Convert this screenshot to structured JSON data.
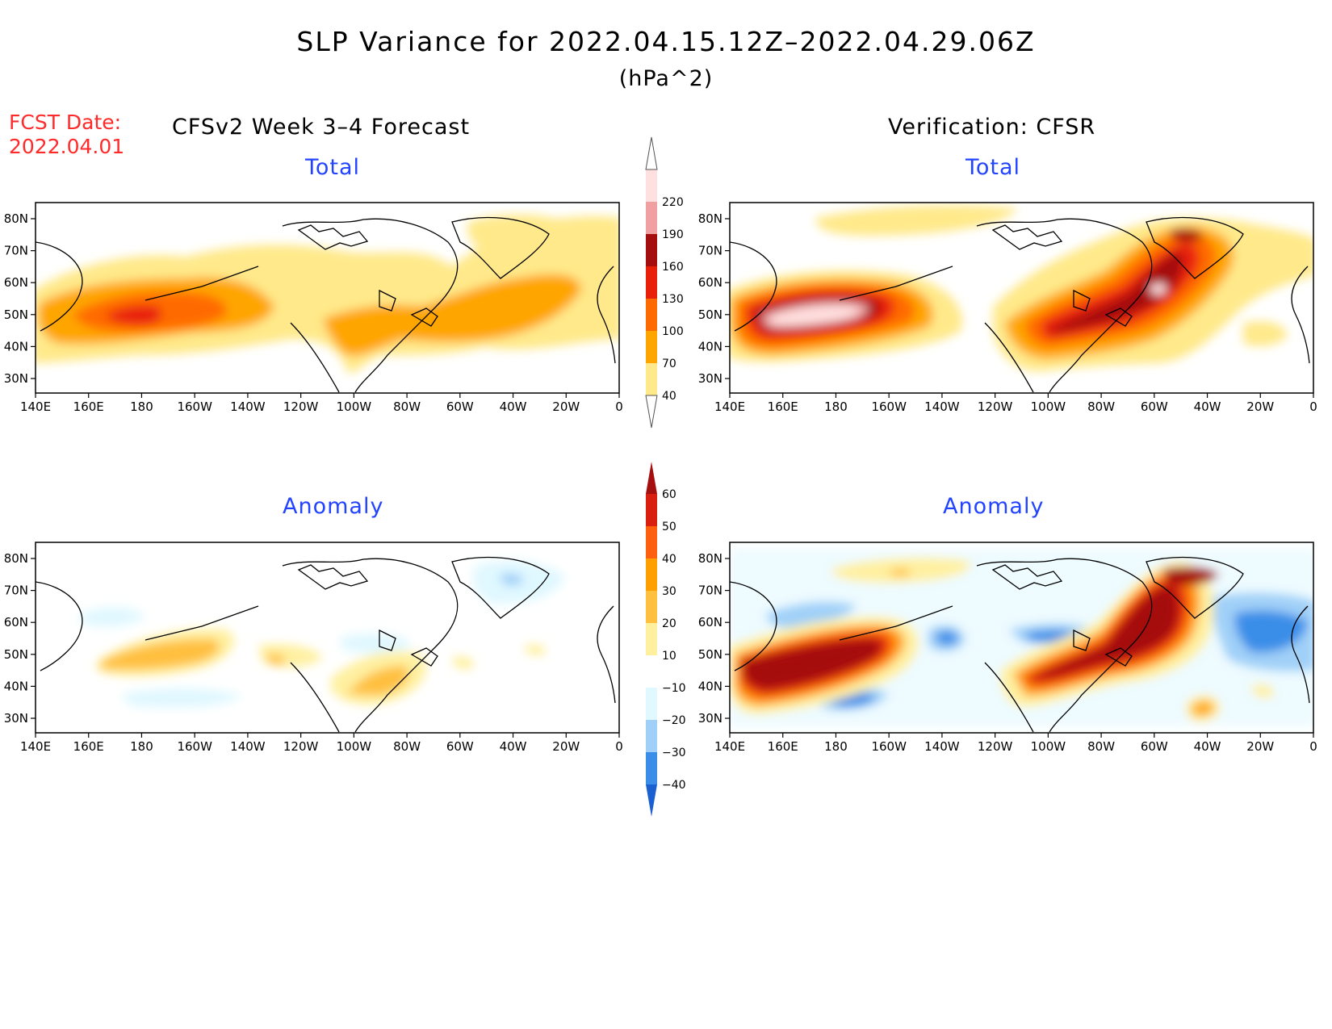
{
  "header": {
    "title": "SLP Variance for 2022.04.15.12Z–2022.04.29.06Z",
    "units": "(hPa^2)",
    "fcst_label": "FCST Date:",
    "fcst_date": "2022.04.01",
    "left_heading": "CFSv2 Week 3–4 Forecast",
    "right_heading": "Verification: CFSR"
  },
  "panels": {
    "forecast_total": {
      "subtitle": "Total"
    },
    "verification_total": {
      "subtitle": "Total"
    },
    "forecast_anomaly": {
      "subtitle": "Anomaly"
    },
    "verification_anomaly": {
      "subtitle": "Anomaly"
    }
  },
  "axes": {
    "lat_labels": [
      "30N",
      "40N",
      "50N",
      "60N",
      "70N",
      "80N"
    ],
    "lon_labels": [
      "140E",
      "160E",
      "180",
      "160W",
      "140W",
      "120W",
      "100W",
      "80W",
      "60W",
      "40W",
      "20W",
      "0"
    ]
  },
  "colorbars": {
    "total": {
      "levels": [
        "40",
        "70",
        "100",
        "130",
        "160",
        "190",
        "220"
      ],
      "colors": [
        "#ffe98a",
        "#ffa500",
        "#ff6a00",
        "#e8200a",
        "#a50e0e",
        "#f0a0a0",
        "#ffe0e0"
      ]
    },
    "anomaly": {
      "levels": [
        "60",
        "50",
        "40",
        "30",
        "20",
        "10",
        "−10",
        "−20",
        "−30",
        "−40"
      ],
      "colors": [
        "#a50f0f",
        "#d92010",
        "#ff6010",
        "#ffa000",
        "#ffc040",
        "#fff0a0",
        "#ffffff",
        "#e0f8ff",
        "#a0d0f8",
        "#3a8ee8",
        "#1a60d0"
      ]
    }
  }
}
